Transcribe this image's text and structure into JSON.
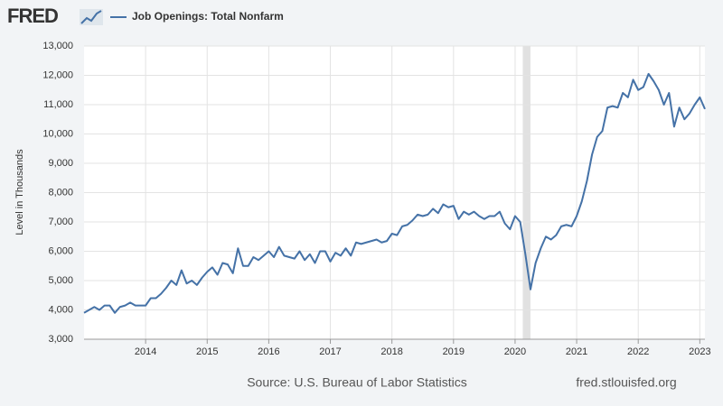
{
  "branding": {
    "logo": "FRED",
    "site": "fred.stlouisfed.org"
  },
  "chart_data": {
    "type": "line",
    "ylabel": "Level in Thousands",
    "source": "Source: U.S. Bureau of Labor Statistics",
    "x": [
      2013,
      2013.083,
      2013.167,
      2013.25,
      2013.333,
      2013.417,
      2013.5,
      2013.583,
      2013.667,
      2013.75,
      2013.833,
      2013.917,
      2014,
      2014.083,
      2014.167,
      2014.25,
      2014.333,
      2014.417,
      2014.5,
      2014.583,
      2014.667,
      2014.75,
      2014.833,
      2014.917,
      2015,
      2015.083,
      2015.167,
      2015.25,
      2015.333,
      2015.417,
      2015.5,
      2015.583,
      2015.667,
      2015.75,
      2015.833,
      2015.917,
      2016,
      2016.083,
      2016.167,
      2016.25,
      2016.333,
      2016.417,
      2016.5,
      2016.583,
      2016.667,
      2016.75,
      2016.833,
      2016.917,
      2017,
      2017.083,
      2017.167,
      2017.25,
      2017.333,
      2017.417,
      2017.5,
      2017.583,
      2017.667,
      2017.75,
      2017.833,
      2017.917,
      2018,
      2018.083,
      2018.167,
      2018.25,
      2018.333,
      2018.417,
      2018.5,
      2018.583,
      2018.667,
      2018.75,
      2018.833,
      2018.917,
      2019,
      2019.083,
      2019.167,
      2019.25,
      2019.333,
      2019.417,
      2019.5,
      2019.583,
      2019.667,
      2019.75,
      2019.833,
      2019.917,
      2020,
      2020.083,
      2020.167,
      2020.25,
      2020.333,
      2020.417,
      2020.5,
      2020.583,
      2020.667,
      2020.75,
      2020.833,
      2020.917,
      2021,
      2021.083,
      2021.167,
      2021.25,
      2021.333,
      2021.417,
      2021.5,
      2021.583,
      2021.667,
      2021.75,
      2021.833,
      2021.917,
      2022,
      2022.083,
      2022.167,
      2022.25,
      2022.333,
      2022.417,
      2022.5,
      2022.583,
      2022.667,
      2022.75,
      2022.833,
      2022.917,
      2023,
      2023.083
    ],
    "series": [
      {
        "name": "Job Openings: Total Nonfarm",
        "color": "#4572a7",
        "values": [
          3900,
          4000,
          4100,
          4000,
          4150,
          4150,
          3900,
          4100,
          4150,
          4250,
          4150,
          4150,
          4150,
          4400,
          4400,
          4550,
          4750,
          5000,
          4850,
          5350,
          4900,
          5000,
          4850,
          5100,
          5300,
          5450,
          5200,
          5600,
          5550,
          5250,
          6100,
          5500,
          5500,
          5800,
          5700,
          5850,
          6000,
          5800,
          6150,
          5850,
          5800,
          5750,
          6000,
          5700,
          5900,
          5600,
          6000,
          6000,
          5650,
          5950,
          5850,
          6100,
          5850,
          6300,
          6250,
          6300,
          6350,
          6400,
          6300,
          6350,
          6600,
          6550,
          6850,
          6900,
          7050,
          7250,
          7200,
          7250,
          7450,
          7300,
          7600,
          7500,
          7550,
          7100,
          7350,
          7250,
          7350,
          7200,
          7100,
          7200,
          7200,
          7350,
          6950,
          6750,
          7200,
          7000,
          5900,
          4700,
          5600,
          6100,
          6500,
          6400,
          6550,
          6850,
          6900,
          6850,
          7200,
          7700,
          8400,
          9300,
          9900,
          10100,
          10900,
          10950,
          10900,
          11400,
          11250,
          11850,
          11500,
          11600,
          12050,
          11800,
          11500,
          11000,
          11400,
          10250,
          10900,
          10500,
          10700,
          11000,
          11250,
          10850
        ]
      }
    ],
    "recessions": [
      {
        "start": 2020.125,
        "end": 2020.25
      }
    ],
    "xlim": [
      2013,
      2023.083
    ],
    "xticks": [
      2014,
      2015,
      2016,
      2017,
      2018,
      2019,
      2020,
      2021,
      2022,
      2023
    ],
    "ylim": [
      3000,
      13000
    ],
    "yticks": [
      {
        "value": 3000,
        "label": "3,000"
      },
      {
        "value": 4000,
        "label": "4,000"
      },
      {
        "value": 5000,
        "label": "5,000"
      },
      {
        "value": 6000,
        "label": "6,000"
      },
      {
        "value": 7000,
        "label": "7,000"
      },
      {
        "value": 8000,
        "label": "8,000"
      },
      {
        "value": 9000,
        "label": "9,000"
      },
      {
        "value": 10000,
        "label": "10,000"
      },
      {
        "value": 11000,
        "label": "11,000"
      },
      {
        "value": 12000,
        "label": "12,000"
      },
      {
        "value": 13000,
        "label": "13,000"
      }
    ],
    "grid": true
  }
}
